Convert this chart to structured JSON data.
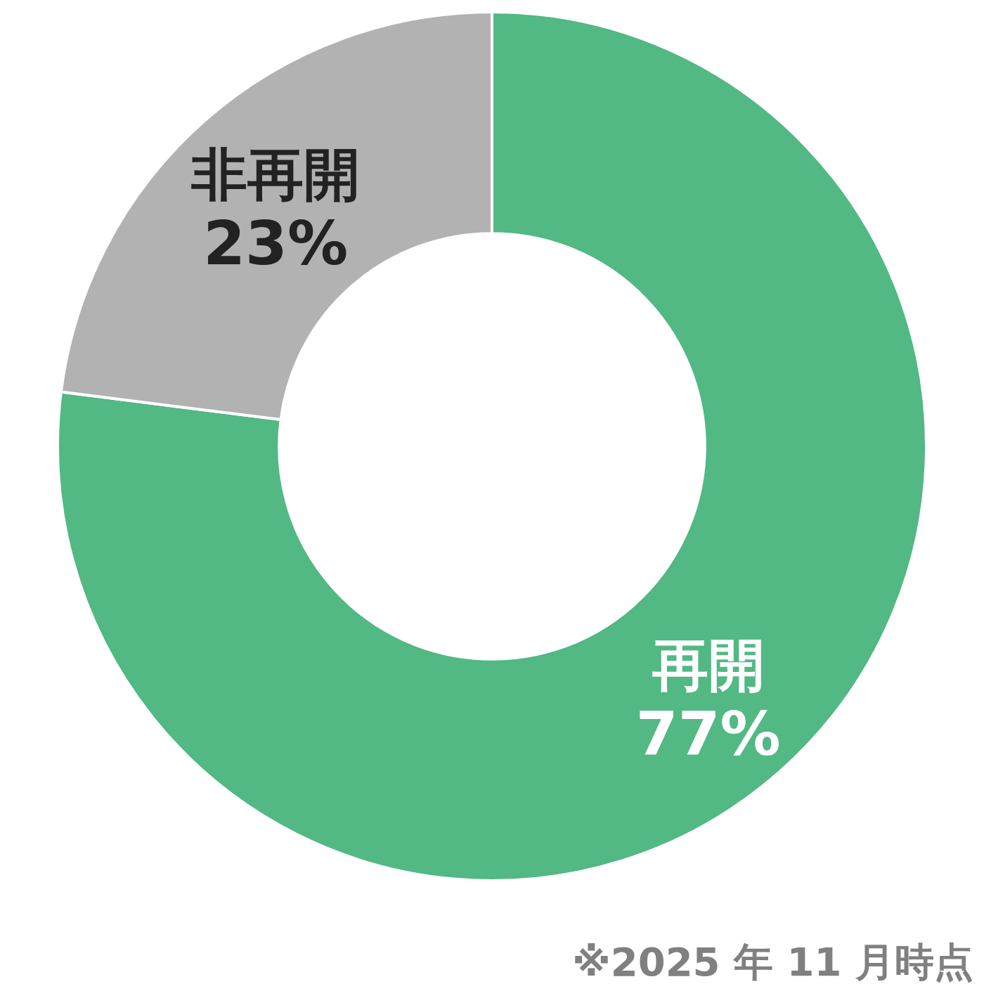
{
  "chart_data": {
    "type": "donut",
    "categories": [
      "再開",
      "非再開"
    ],
    "values": [
      77,
      23
    ],
    "colors": [
      "#52b884",
      "#b2b2b2"
    ],
    "value_labels": [
      "77%",
      "23%"
    ],
    "annotations": [
      "※2025 年 11 月時点"
    ]
  }
}
